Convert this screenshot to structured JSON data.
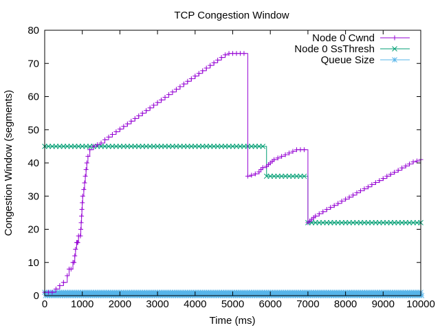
{
  "chart_data": {
    "type": "line",
    "title": "TCP Congestion Window",
    "xlabel": "Time (ms)",
    "ylabel": "Congestion Window (segments)",
    "xlim": [
      0,
      10000
    ],
    "ylim": [
      0,
      80
    ],
    "x_ticks": [
      0,
      1000,
      2000,
      3000,
      4000,
      5000,
      6000,
      7000,
      8000,
      9000,
      10000
    ],
    "y_ticks": [
      0,
      10,
      20,
      30,
      40,
      50,
      60,
      70,
      80
    ],
    "grid": false,
    "legend_position": "top-right",
    "series": [
      {
        "name": "Node 0 Cwnd",
        "color": "#9400d3",
        "marker": "plus",
        "x": [
          0,
          100,
          200,
          300,
          400,
          500,
          600,
          650,
          700,
          750,
          780,
          800,
          820,
          850,
          870,
          880,
          900,
          950,
          960,
          970,
          980,
          990,
          1000,
          1010,
          1040,
          1060,
          1080,
          1100,
          1120,
          1150,
          1200,
          1300,
          1400,
          1500,
          1600,
          1700,
          1800,
          1900,
          2000,
          2100,
          2200,
          2300,
          2400,
          2500,
          2600,
          2700,
          2800,
          2900,
          3000,
          3100,
          3200,
          3300,
          3400,
          3500,
          3600,
          3700,
          3800,
          3900,
          4000,
          4100,
          4200,
          4300,
          4400,
          4500,
          4600,
          4700,
          4800,
          4900,
          5000,
          5100,
          5200,
          5300,
          5400,
          5500,
          5600,
          5700,
          5750,
          5800,
          5900,
          5950,
          6000,
          6050,
          6100,
          6200,
          6300,
          6400,
          6500,
          6600,
          6700,
          6800,
          6900,
          7000,
          7050,
          7100,
          7150,
          7200,
          7300,
          7400,
          7500,
          7600,
          7700,
          7800,
          7900,
          8000,
          8100,
          8200,
          8300,
          8400,
          8500,
          8600,
          8700,
          8800,
          8900,
          9000,
          9100,
          9200,
          9300,
          9400,
          9500,
          9600,
          9700,
          9800,
          9900,
          10000
        ],
        "y": [
          1,
          1,
          1,
          2,
          3,
          4,
          6,
          8,
          8,
          10,
          10,
          12,
          14,
          16,
          16,
          16,
          18,
          18,
          20,
          22,
          24,
          26,
          28,
          30,
          32,
          34,
          36,
          38,
          40,
          42,
          44,
          45,
          45.5,
          46,
          47,
          47.8,
          48.6,
          49.4,
          50.2,
          51,
          51.8,
          52.6,
          53.4,
          54.2,
          55,
          55.8,
          56.6,
          57.4,
          58.2,
          59,
          59.8,
          60.6,
          61.4,
          62.2,
          63,
          63.8,
          64.6,
          65.4,
          66.2,
          67,
          67.8,
          68.6,
          69.4,
          70.2,
          71,
          71.8,
          72.6,
          73,
          73,
          73,
          73,
          73,
          36,
          36.3,
          36.7,
          37.3,
          38,
          38.6,
          39,
          39.5,
          40,
          40.5,
          41,
          41.5,
          42,
          42.5,
          43,
          43.5,
          44,
          44,
          44,
          22,
          22.5,
          23,
          23.5,
          24,
          24.7,
          25.3,
          26,
          26.6,
          27.2,
          27.8,
          28.5,
          29.1,
          29.7,
          30.3,
          31,
          31.6,
          32.2,
          32.8,
          33.5,
          34.1,
          34.7,
          35.3,
          36,
          36.6,
          37.2,
          37.8,
          38.5,
          39.1,
          39.7,
          40.3,
          40.6,
          41
        ]
      },
      {
        "name": "Node 0 SsThresh",
        "color": "#009e73",
        "marker": "x",
        "x": [
          0,
          100,
          200,
          300,
          400,
          500,
          600,
          700,
          800,
          900,
          1000,
          1100,
          1200,
          1300,
          1400,
          1500,
          1600,
          1700,
          1800,
          1900,
          2000,
          2100,
          2200,
          2300,
          2400,
          2500,
          2600,
          2700,
          2800,
          2900,
          3000,
          3100,
          3200,
          3300,
          3400,
          3500,
          3600,
          3700,
          3800,
          3900,
          4000,
          4100,
          4200,
          4300,
          4400,
          4500,
          4600,
          4700,
          4800,
          4900,
          5000,
          5100,
          5200,
          5300,
          5400,
          5500,
          5600,
          5700,
          5800,
          5900,
          6000,
          6100,
          6200,
          6300,
          6400,
          6500,
          6600,
          6700,
          6800,
          6900,
          7000,
          7100,
          7200,
          7300,
          7400,
          7500,
          7600,
          7700,
          7800,
          7900,
          8000,
          8100,
          8200,
          8300,
          8400,
          8500,
          8600,
          8700,
          8800,
          8900,
          9000,
          9100,
          9200,
          9300,
          9400,
          9500,
          9600,
          9700,
          9800,
          9900,
          10000
        ],
        "y": [
          45,
          45,
          45,
          45,
          45,
          45,
          45,
          45,
          45,
          45,
          45,
          45,
          45,
          45,
          45,
          45,
          45,
          45,
          45,
          45,
          45,
          45,
          45,
          45,
          45,
          45,
          45,
          45,
          45,
          45,
          45,
          45,
          45,
          45,
          45,
          45,
          45,
          45,
          45,
          45,
          45,
          45,
          45,
          45,
          45,
          45,
          45,
          45,
          45,
          45,
          45,
          45,
          45,
          45,
          45,
          45,
          45,
          45,
          45,
          36,
          36,
          36,
          36,
          36,
          36,
          36,
          36,
          36,
          36,
          36,
          22,
          22,
          22,
          22,
          22,
          22,
          22,
          22,
          22,
          22,
          22,
          22,
          22,
          22,
          22,
          22,
          22,
          22,
          22,
          22,
          22,
          22,
          22,
          22,
          22,
          22,
          22,
          22,
          22,
          22,
          22
        ]
      },
      {
        "name": "Queue Size",
        "color": "#56b4e9",
        "marker": "star",
        "style": "dense",
        "x_range": [
          0,
          10000
        ],
        "levels": [
          0,
          1
        ]
      }
    ]
  }
}
